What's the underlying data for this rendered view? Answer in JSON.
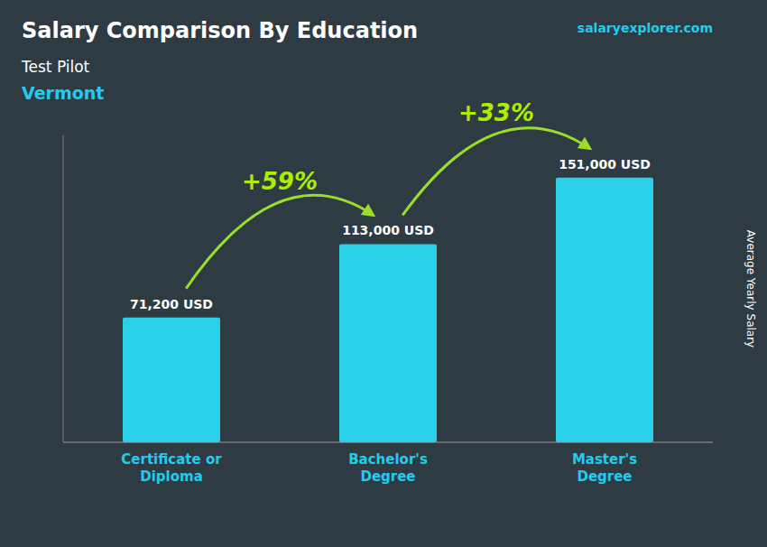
{
  "chart_data": {
    "type": "bar",
    "title": "Salary Comparison By Education",
    "subtitle": [
      "Test Pilot",
      "Vermont"
    ],
    "y_label": "Average Yearly Salary",
    "categories": [
      "Certificate or\nDiploma",
      "Bachelor's\nDegree",
      "Master's\nDegree"
    ],
    "values": [
      71200,
      113000,
      151000
    ],
    "value_labels": [
      "71,200 USD",
      "113,000 USD",
      "151,000 USD"
    ],
    "data_labels": true,
    "annotations": [
      "+59%",
      "+33%"
    ],
    "source": "salaryexplorer.com",
    "color": "#29d0e8",
    "ylim": [
      0,
      175000
    ],
    "tick_labels": false,
    "grid": false
  }
}
